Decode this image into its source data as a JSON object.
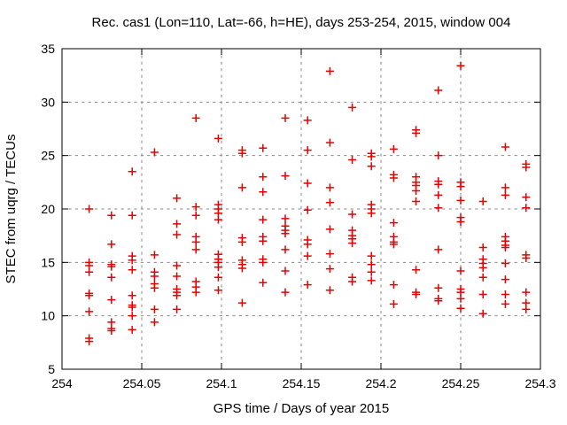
{
  "window": {
    "background": "#ffffff",
    "text_color": "#000000"
  },
  "chart_data": {
    "type": "scatter",
    "title": "Rec. cas1 (Lon=110, Lat=-66, h=HE), days 253-254, 2015, window 004",
    "xlabel": "GPS time / Days of year 2015",
    "ylabel": "STEC from uqrg / TECUs",
    "xlim": [
      254,
      254.3
    ],
    "ylim": [
      5,
      35
    ],
    "xticks": [
      254,
      254.05,
      254.1,
      254.15,
      254.2,
      254.25,
      254.3
    ],
    "xtick_labels": [
      "254",
      "254.05",
      "254.1",
      "254.15",
      "254.2",
      "254.25",
      "254.3"
    ],
    "yticks": [
      5,
      10,
      15,
      20,
      25,
      30,
      35
    ],
    "ytick_labels": [
      "5",
      "10",
      "15",
      "20",
      "25",
      "30",
      "35"
    ],
    "grid": true,
    "grid_style": "dashed",
    "legend": "none",
    "axis_color": "#000000",
    "grid_color": "#888888",
    "marker": {
      "shape": "plus",
      "color": "#e60000",
      "size": 9,
      "stroke_width": 1.5
    },
    "series": [
      {
        "name": "STEC",
        "columns": [
          {
            "x": 254.017,
            "y": [
              20.0,
              15.0,
              14.7,
              14.1,
              12.1,
              11.9,
              10.4,
              7.9,
              7.6
            ]
          },
          {
            "x": 254.031,
            "y": [
              19.4,
              16.7,
              14.8,
              14.6,
              13.6,
              11.5,
              9.4,
              8.8,
              8.6
            ]
          },
          {
            "x": 254.044,
            "y": [
              23.5,
              19.4,
              15.6,
              15.2,
              14.3,
              11.9,
              11.0,
              10.8,
              10.0,
              8.7
            ]
          },
          {
            "x": 254.058,
            "y": [
              25.3,
              15.7,
              14.1,
              13.7,
              13.0,
              12.6,
              10.6,
              9.4
            ]
          },
          {
            "x": 254.072,
            "y": [
              21.0,
              18.6,
              17.6,
              14.7,
              13.7,
              12.5,
              12.2,
              11.9,
              10.6
            ]
          },
          {
            "x": 254.084,
            "y": [
              28.5,
              20.2,
              19.4,
              17.4,
              16.9,
              16.2,
              13.2,
              12.7,
              12.2
            ]
          },
          {
            "x": 254.098,
            "y": [
              26.6,
              20.4,
              20.0,
              19.6,
              19.0,
              15.75,
              15.3,
              15.0,
              14.55,
              13.6,
              12.4
            ]
          },
          {
            "x": 254.113,
            "y": [
              25.5,
              25.2,
              22.0,
              17.3,
              16.9,
              15.2,
              14.8,
              14.45,
              11.2
            ]
          },
          {
            "x": 254.126,
            "y": [
              25.7,
              23.0,
              21.6,
              19.0,
              17.4,
              17.0,
              15.3,
              15.0,
              13.1
            ]
          },
          {
            "x": 254.14,
            "y": [
              28.5,
              23.1,
              19.1,
              18.4,
              18.0,
              17.7,
              16.2,
              14.2,
              12.2
            ]
          },
          {
            "x": 254.154,
            "y": [
              28.3,
              25.5,
              22.4,
              19.9,
              17.1,
              16.7,
              15.6,
              12.9
            ]
          },
          {
            "x": 254.168,
            "y": [
              32.9,
              26.2,
              22.0,
              20.6,
              18.1,
              15.8,
              14.4,
              12.4
            ]
          },
          {
            "x": 254.182,
            "y": [
              29.5,
              24.6,
              19.5,
              18.0,
              17.5,
              17.2,
              16.8,
              13.6,
              13.2
            ]
          },
          {
            "x": 254.194,
            "y": [
              25.2,
              24.9,
              24.0,
              20.4,
              20.0,
              19.6,
              15.6,
              14.8,
              14.1,
              13.3
            ]
          },
          {
            "x": 254.208,
            "y": [
              25.6,
              23.2,
              22.9,
              18.7,
              17.4,
              16.9,
              16.7,
              12.9,
              11.1
            ]
          },
          {
            "x": 254.222,
            "y": [
              27.4,
              27.1,
              23.0,
              22.5,
              22.2,
              21.7,
              20.7,
              14.3,
              12.2,
              12.0
            ]
          },
          {
            "x": 254.236,
            "y": [
              31.1,
              25.0,
              22.6,
              22.3,
              21.3,
              20.1,
              16.2,
              12.6,
              11.6,
              11.4
            ]
          },
          {
            "x": 254.25,
            "y": [
              33.4,
              22.5,
              22.1,
              20.8,
              19.2,
              18.8,
              14.2,
              12.5,
              12.2,
              11.6,
              10.7
            ]
          },
          {
            "x": 254.264,
            "y": [
              20.7,
              16.4,
              15.3,
              14.9,
              14.5,
              13.6,
              12.0,
              10.2
            ]
          },
          {
            "x": 254.278,
            "y": [
              25.8,
              22.0,
              21.3,
              17.4,
              17.0,
              16.6,
              16.4,
              14.9,
              13.4,
              12.0,
              11.1
            ]
          },
          {
            "x": 254.291,
            "y": [
              24.2,
              23.9,
              21.1,
              20.1,
              15.7,
              15.4,
              12.2,
              11.2,
              10.6
            ]
          }
        ]
      }
    ]
  }
}
